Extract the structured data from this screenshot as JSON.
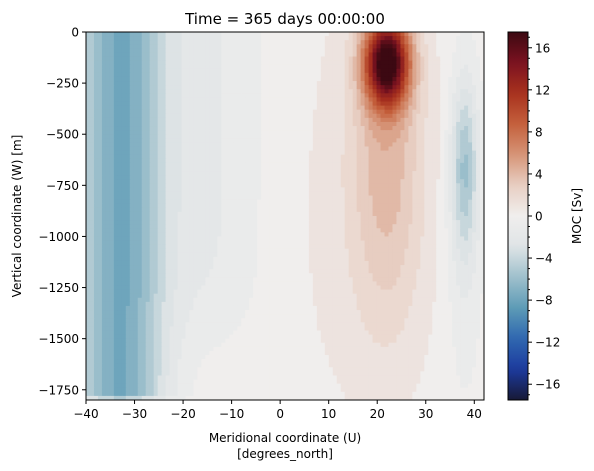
{
  "chart_data": {
    "type": "heatmap",
    "title": "Time = 365 days 00:00:00",
    "xlabel_line1": "Meridional coordinate (U)",
    "xlabel_line2": "[degrees_north]",
    "ylabel": "Vertical coordinate (W) [m]",
    "xlim": [
      -40,
      42
    ],
    "ylim": [
      -1800,
      0
    ],
    "xticks": [
      -40,
      -30,
      -20,
      -10,
      0,
      10,
      20,
      30,
      40
    ],
    "yticks": [
      0,
      -250,
      -500,
      -750,
      -1000,
      -1250,
      -1500,
      -1750
    ],
    "ytick_labels": [
      "0",
      "−250",
      "−500",
      "−750",
      "−1000",
      "−1250",
      "−1500",
      "−1750"
    ],
    "xtick_labels": [
      "−40",
      "−30",
      "−20",
      "−10",
      "0",
      "10",
      "20",
      "30",
      "40"
    ],
    "colorbar": {
      "label": "MOC [Sv]",
      "range": [
        -17.5,
        17.5
      ],
      "ticks": [
        16,
        12,
        8,
        4,
        0,
        -4,
        -8,
        -12,
        -16
      ],
      "tick_labels": [
        "16",
        "12",
        "8",
        "4",
        "0",
        "−4",
        "−8",
        "−12",
        "−16"
      ],
      "colormap": "diverging blue-white-red (cmocean balance)",
      "stops": [
        "#171936",
        "#1c3a9e",
        "#2f67b0",
        "#5d9bb6",
        "#9ec0cc",
        "#dfe4e6",
        "#f0eeed",
        "#e8cfc3",
        "#d69477",
        "#c4603c",
        "#a8311e",
        "#7b1220",
        "#3c0912"
      ]
    },
    "features": [
      {
        "name": "southern negative cell",
        "lat_center": -33,
        "depth_range": [
          0,
          -1800
        ],
        "min_value": -8
      },
      {
        "name": "northern positive cell",
        "lat_center": 22,
        "depth_center": -150,
        "max_value": 17
      },
      {
        "name": "far-north negative cell",
        "lat_center": 38,
        "depth_center": -650,
        "min_value": -5
      }
    ],
    "grid": false
  }
}
